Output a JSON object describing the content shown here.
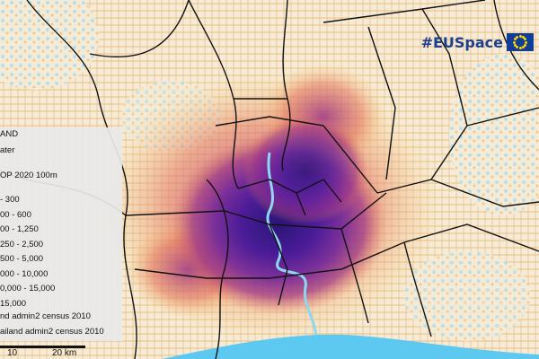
{
  "legend": {
    "title": "AND",
    "water": "ater",
    "population_title": "OP 2020 100m",
    "classes": [
      {
        "label": "- 300",
        "color": "#f7c66b"
      },
      {
        "label": "00 - 600",
        "color": "#f19a4f"
      },
      {
        "label": "00 - 1,250",
        "color": "#e2715c"
      },
      {
        "label": "250 - 2,500",
        "color": "#c24f75"
      },
      {
        "label": "500 - 5,000",
        "color": "#9b3588"
      },
      {
        "label": "000 - 10,000",
        "color": "#71269a"
      },
      {
        "label": "0,000 - 15,000",
        "color": "#4b1c98"
      },
      {
        "label": "15,000",
        "color": "#2a1577"
      }
    ],
    "admin_census_a": "nd admin2 census 2010",
    "admin_census_b": "ailand admin2 census 2010"
  },
  "branding": {
    "text": "#EUSpace",
    "flag_icon": "eu-flag-icon"
  },
  "scale": {
    "mid_label": "10",
    "end_label": "20 km"
  },
  "colors": {
    "land": "#f4ecd8",
    "water": "#7fd0ee",
    "sea": "#5dc8f0",
    "boundary": "#111111",
    "brand_blue": "#1d3f8f"
  }
}
